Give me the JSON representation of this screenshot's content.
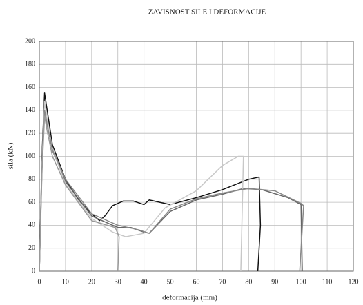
{
  "chart_data": {
    "type": "line",
    "title": "ZAVISNOST SILE I DEFORMACIJE",
    "x_label": "deformacija (mm)",
    "y_label": "sila (kN)",
    "xlim": [
      0,
      120
    ],
    "ylim": [
      0,
      200
    ],
    "xticks": [
      0,
      10,
      20,
      30,
      40,
      50,
      60,
      70,
      80,
      90,
      100,
      110,
      120
    ],
    "yticks": [
      0,
      20,
      40,
      60,
      80,
      100,
      120,
      140,
      160,
      180,
      200
    ],
    "grid": true,
    "series": [
      {
        "color": "#111111",
        "x": [
          0,
          1,
          2,
          3,
          5,
          10,
          15,
          20,
          23,
          25,
          28,
          32,
          36,
          40,
          42,
          46,
          50,
          60,
          70,
          80,
          84,
          84.5,
          83.5
        ],
        "values": [
          0,
          100,
          155,
          140,
          110,
          80,
          62,
          50,
          44,
          48,
          57,
          61,
          61,
          58,
          62,
          60,
          58,
          64,
          71,
          80,
          82,
          40,
          0
        ]
      },
      {
        "color": "#666666",
        "x": [
          0,
          1,
          2,
          3,
          5,
          10,
          20,
          30,
          35,
          40,
          42,
          50,
          60,
          70,
          78,
          85,
          95,
          100,
          100.5
        ],
        "values": [
          0,
          90,
          140,
          128,
          105,
          78,
          48,
          38,
          38,
          34,
          33,
          52,
          62,
          67,
          72,
          71,
          64,
          58,
          0
        ]
      },
      {
        "color": "#c8c8c8",
        "x": [
          0,
          1,
          2,
          3,
          5,
          10,
          20,
          28,
          33,
          40,
          48,
          60,
          70,
          76,
          78,
          77
        ],
        "values": [
          0,
          95,
          148,
          132,
          106,
          76,
          46,
          34,
          30,
          33,
          55,
          70,
          92,
          100,
          100,
          0
        ]
      },
      {
        "color": "#888888",
        "x": [
          0,
          1,
          2,
          3,
          5,
          10,
          20,
          30,
          32,
          38,
          42,
          50,
          60,
          70,
          80,
          90,
          100,
          101,
          99.5
        ],
        "values": [
          0,
          90,
          140,
          127,
          106,
          80,
          50,
          40,
          39,
          36,
          33,
          54,
          63,
          68,
          72,
          70,
          59,
          57,
          0
        ]
      },
      {
        "color": "#999999",
        "x": [
          0,
          1,
          2,
          3,
          5,
          10,
          20,
          29,
          30.5,
          30
        ],
        "values": [
          0,
          85,
          135,
          122,
          100,
          75,
          44,
          38,
          30,
          0
        ]
      }
    ]
  }
}
